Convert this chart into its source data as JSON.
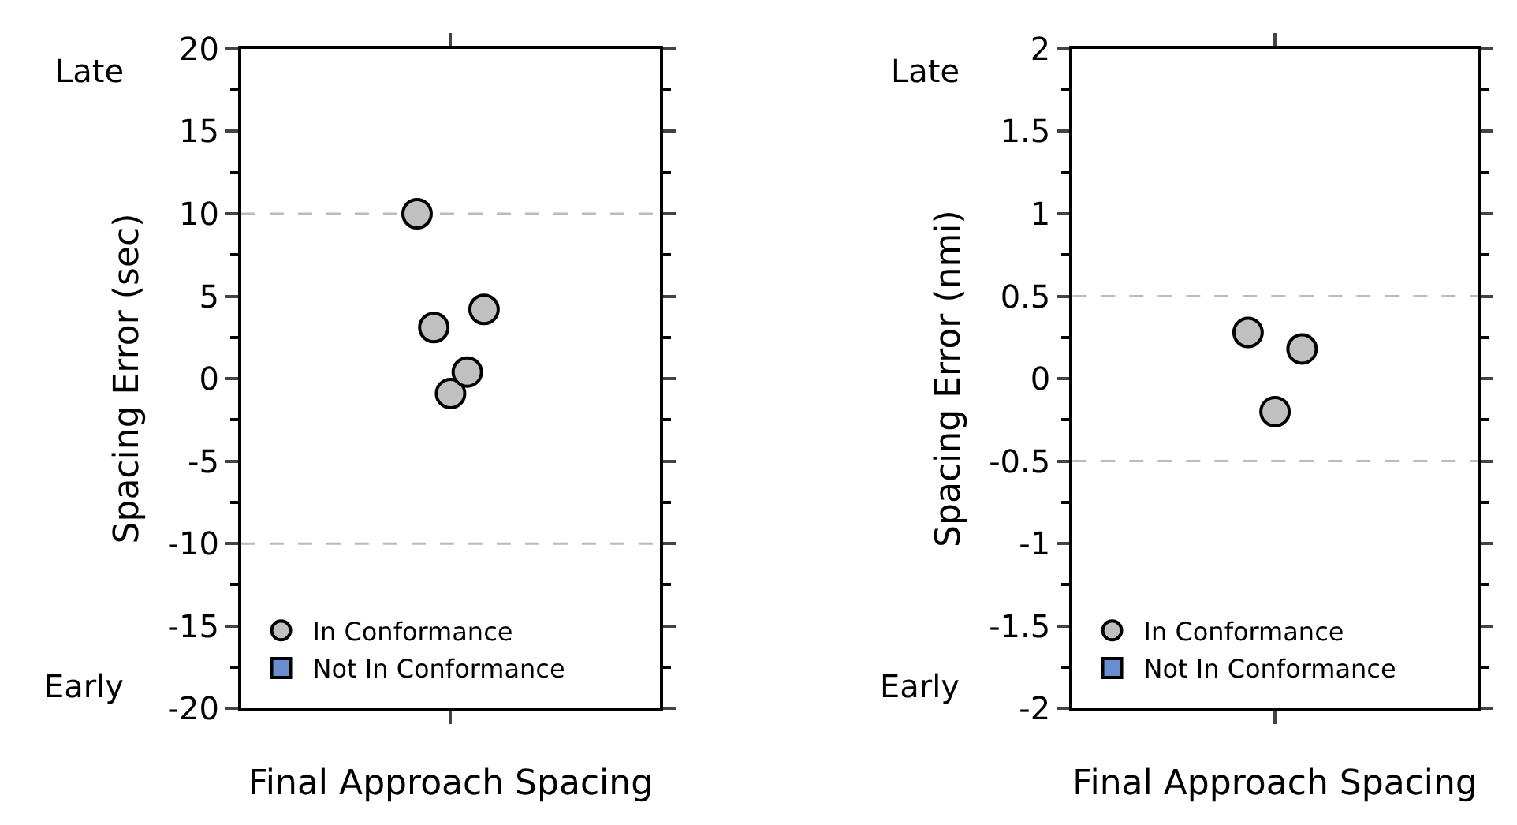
{
  "chart_data": [
    {
      "type": "scatter",
      "xlabel": "Final Approach Spacing",
      "ylabel": "Spacing Error (sec)",
      "annotations": [
        "Late",
        "Early"
      ],
      "tick_labels": "y",
      "categories": [
        null
      ],
      "ylim": [
        -20,
        20
      ],
      "yticks": [
        -20,
        -15,
        -10,
        -5,
        0,
        5,
        10,
        15,
        20
      ],
      "grid": false,
      "legend": "bottom left",
      "marker": "circle",
      "ref_lines": [
        {
          "axis": "y",
          "value": 10,
          "label": null,
          "color": "#bbbbbb",
          "line_style": "dashed"
        },
        {
          "axis": "y",
          "value": -10,
          "label": null,
          "color": "#bbbbbb",
          "line_style": "dashed"
        }
      ],
      "series": [
        {
          "name": "In Conformance",
          "color": "#c0c0c0",
          "values": [
            10
          ]
        },
        {
          "color": "#c0c0c0",
          "values": [
            3.1
          ]
        },
        {
          "color": "#c0c0c0",
          "values": [
            -0.9
          ]
        },
        {
          "color": "#c0c0c0",
          "values": [
            0.4
          ]
        },
        {
          "color": "#c0c0c0",
          "values": [
            4.2
          ]
        },
        {
          "name": "Not In Conformance",
          "color": "#6a8fd0",
          "marker": "square",
          "values": [
            null
          ]
        }
      ]
    },
    {
      "type": "scatter",
      "xlabel": "Final Approach Spacing",
      "ylabel": "Spacing Error (nmi)",
      "annotations": [
        "Late",
        "Early"
      ],
      "tick_labels": "y",
      "categories": [
        null
      ],
      "ylim": [
        -2,
        2
      ],
      "yticks": [
        -2,
        -1.5,
        -1,
        -0.5,
        0,
        0.5,
        1,
        1.5,
        2
      ],
      "grid": false,
      "legend": "bottom left",
      "marker": "circle",
      "ref_lines": [
        {
          "axis": "y",
          "value": 0.5,
          "label": null,
          "color": "#bbbbbb",
          "line_style": "dashed"
        },
        {
          "axis": "y",
          "value": -0.5,
          "label": null,
          "color": "#bbbbbb",
          "line_style": "dashed"
        }
      ],
      "series": [
        {
          "name": "In Conformance",
          "color": "#c0c0c0",
          "values": [
            0.28
          ]
        },
        {
          "color": "#c0c0c0",
          "values": [
            -0.2
          ]
        },
        {
          "color": "#c0c0c0",
          "values": [
            0.18
          ]
        },
        {
          "name": "Not In Conformance",
          "color": "#6a8fd0",
          "marker": "square",
          "values": [
            null
          ]
        }
      ]
    }
  ]
}
